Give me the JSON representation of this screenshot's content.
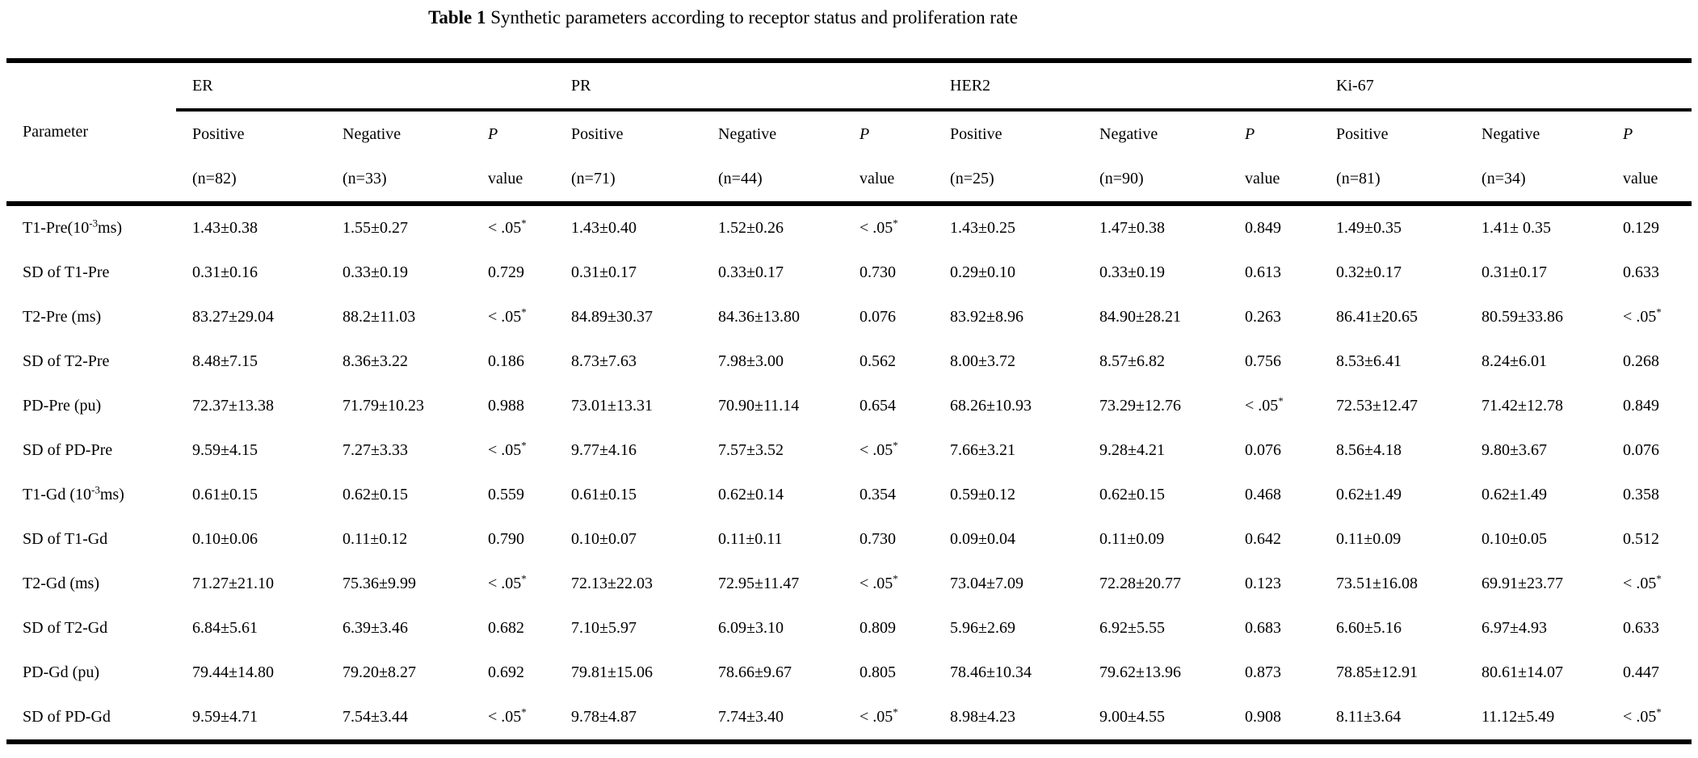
{
  "title": {
    "bold": "Table 1",
    "rest": " Synthetic parameters according to receptor status and proliferation rate"
  },
  "table": {
    "parameter_header": "Parameter",
    "groups": [
      {
        "label": "ER",
        "subcolumns": [
          {
            "line1": "Positive",
            "line2": "(n=82)",
            "italic": false
          },
          {
            "line1": "Negative",
            "line2": "(n=33)",
            "italic": false
          },
          {
            "line1": "P",
            "line2": "value",
            "italic": true
          }
        ]
      },
      {
        "label": "PR",
        "subcolumns": [
          {
            "line1": "Positive",
            "line2": "(n=71)",
            "italic": false
          },
          {
            "line1": "Negative",
            "line2": "(n=44)",
            "italic": false
          },
          {
            "line1": "P",
            "line2": "value",
            "italic": true
          }
        ]
      },
      {
        "label": "HER2",
        "subcolumns": [
          {
            "line1": "Positive",
            "line2": "(n=25)",
            "italic": false
          },
          {
            "line1": "Negative",
            "line2": "(n=90)",
            "italic": false
          },
          {
            "line1": "P",
            "line2": "value",
            "italic": true
          }
        ]
      },
      {
        "label": "Ki-67",
        "subcolumns": [
          {
            "line1": "Positive",
            "line2": "(n=81)",
            "italic": false
          },
          {
            "line1": "Negative",
            "line2": "(n=34)",
            "italic": false
          },
          {
            "line1": "P",
            "line2": "value",
            "italic": true
          }
        ]
      }
    ],
    "rows": [
      {
        "parameter": {
          "pre": "T1-Pre(10",
          "sup": "-3",
          "post": "ms)"
        },
        "values": [
          "1.43±0.38",
          "1.55±0.27",
          {
            "pre": "< .05",
            "sup": "*",
            "b": true
          },
          "1.43±0.40",
          "1.52±0.26",
          {
            "pre": "< .05",
            "sup": "*",
            "b": true
          },
          "1.43±0.25",
          "1.47±0.38",
          "0.849",
          "1.49±0.35",
          "1.41± 0.35",
          "0.129"
        ]
      },
      {
        "parameter": "SD of T1-Pre",
        "values": [
          "0.31±0.16",
          "0.33±0.19",
          "0.729",
          "0.31±0.17",
          "0.33±0.17",
          "0.730",
          "0.29±0.10",
          "0.33±0.19",
          "0.613",
          "0.32±0.17",
          "0.31±0.17",
          "0.633"
        ]
      },
      {
        "parameter": "T2-Pre (ms)",
        "values": [
          "83.27±29.04",
          "88.2±11.03",
          {
            "pre": "< .05",
            "sup": "*",
            "b": true
          },
          "84.89±30.37",
          "84.36±13.80",
          "0.076",
          "83.92±8.96",
          "84.90±28.21",
          "0.263",
          "86.41±20.65",
          "80.59±33.86",
          {
            "pre": "< .05",
            "sup": "*",
            "b": true
          }
        ]
      },
      {
        "parameter": "SD of T2-Pre",
        "values": [
          "8.48±7.15",
          "8.36±3.22",
          "0.186",
          "8.73±7.63",
          "7.98±3.00",
          "0.562",
          "8.00±3.72",
          "8.57±6.82",
          "0.756",
          "8.53±6.41",
          "8.24±6.01",
          "0.268"
        ]
      },
      {
        "parameter": "PD-Pre (pu)",
        "values": [
          "72.37±13.38",
          "71.79±10.23",
          "0.988",
          "73.01±13.31",
          "70.90±11.14",
          "0.654",
          "68.26±10.93",
          "73.29±12.76",
          {
            "pre": "< .05",
            "sup": "*",
            "b": true
          },
          "72.53±12.47",
          "71.42±12.78",
          "0.849"
        ]
      },
      {
        "parameter": "SD of PD-Pre",
        "values": [
          "9.59±4.15",
          "7.27±3.33",
          {
            "pre": "< .05",
            "sup": "*",
            "b": true
          },
          "9.77±4.16",
          "7.57±3.52",
          {
            "pre": "< .05",
            "sup": "*",
            "b": true
          },
          "7.66±3.21",
          "9.28±4.21",
          "0.076",
          "8.56±4.18",
          "9.80±3.67",
          "0.076"
        ]
      },
      {
        "parameter": {
          "pre": "T1-Gd (10",
          "sup": "-3",
          "post": "ms)"
        },
        "values": [
          "0.61±0.15",
          "0.62±0.15",
          "0.559",
          "0.61±0.15",
          "0.62±0.14",
          "0.354",
          "0.59±0.12",
          "0.62±0.15",
          "0.468",
          "0.62±1.49",
          "0.62±1.49",
          "0.358"
        ]
      },
      {
        "parameter": "SD of T1-Gd",
        "values": [
          "0.10±0.06",
          "0.11±0.12",
          "0.790",
          "0.10±0.07",
          "0.11±0.11",
          "0.730",
          "0.09±0.04",
          "0.11±0.09",
          "0.642",
          "0.11±0.09",
          "0.10±0.05",
          "0.512"
        ]
      },
      {
        "parameter": "T2-Gd (ms)",
        "values": [
          "71.27±21.10",
          "75.36±9.99",
          {
            "pre": "< .05",
            "sup": "*",
            "b": true
          },
          "72.13±22.03",
          "72.95±11.47",
          {
            "pre": "< .05",
            "sup": "*",
            "b": true
          },
          "73.04±7.09",
          "72.28±20.77",
          "0.123",
          "73.51±16.08",
          "69.91±23.77",
          {
            "pre": "< .05",
            "sup": "*",
            "b": true
          }
        ]
      },
      {
        "parameter": "SD of T2-Gd",
        "values": [
          "6.84±5.61",
          "6.39±3.46",
          "0.682",
          "7.10±5.97",
          "6.09±3.10",
          "0.809",
          "5.96±2.69",
          "6.92±5.55",
          "0.683",
          "6.60±5.16",
          "6.97±4.93",
          "0.633"
        ]
      },
      {
        "parameter": "PD-Gd (pu)",
        "values": [
          "79.44±14.80",
          "79.20±8.27",
          "0.692",
          "79.81±15.06",
          "78.66±9.67",
          "0.805",
          "78.46±10.34",
          "79.62±13.96",
          "0.873",
          "78.85±12.91",
          "80.61±14.07",
          "0.447"
        ]
      },
      {
        "parameter": "SD of PD-Gd",
        "values": [
          "9.59±4.71",
          "7.54±3.44",
          {
            "pre": "< .05",
            "sup": "*",
            "b": true
          },
          "9.78±4.87",
          "7.74±3.40",
          {
            "pre": "< .05",
            "sup": "*",
            "b": true
          },
          "8.98±4.23",
          "9.00±4.55",
          "0.908",
          "8.11±3.64",
          "11.12±5.49",
          {
            "pre": "< .05",
            "sup": "*",
            "b": true
          }
        ]
      }
    ]
  }
}
